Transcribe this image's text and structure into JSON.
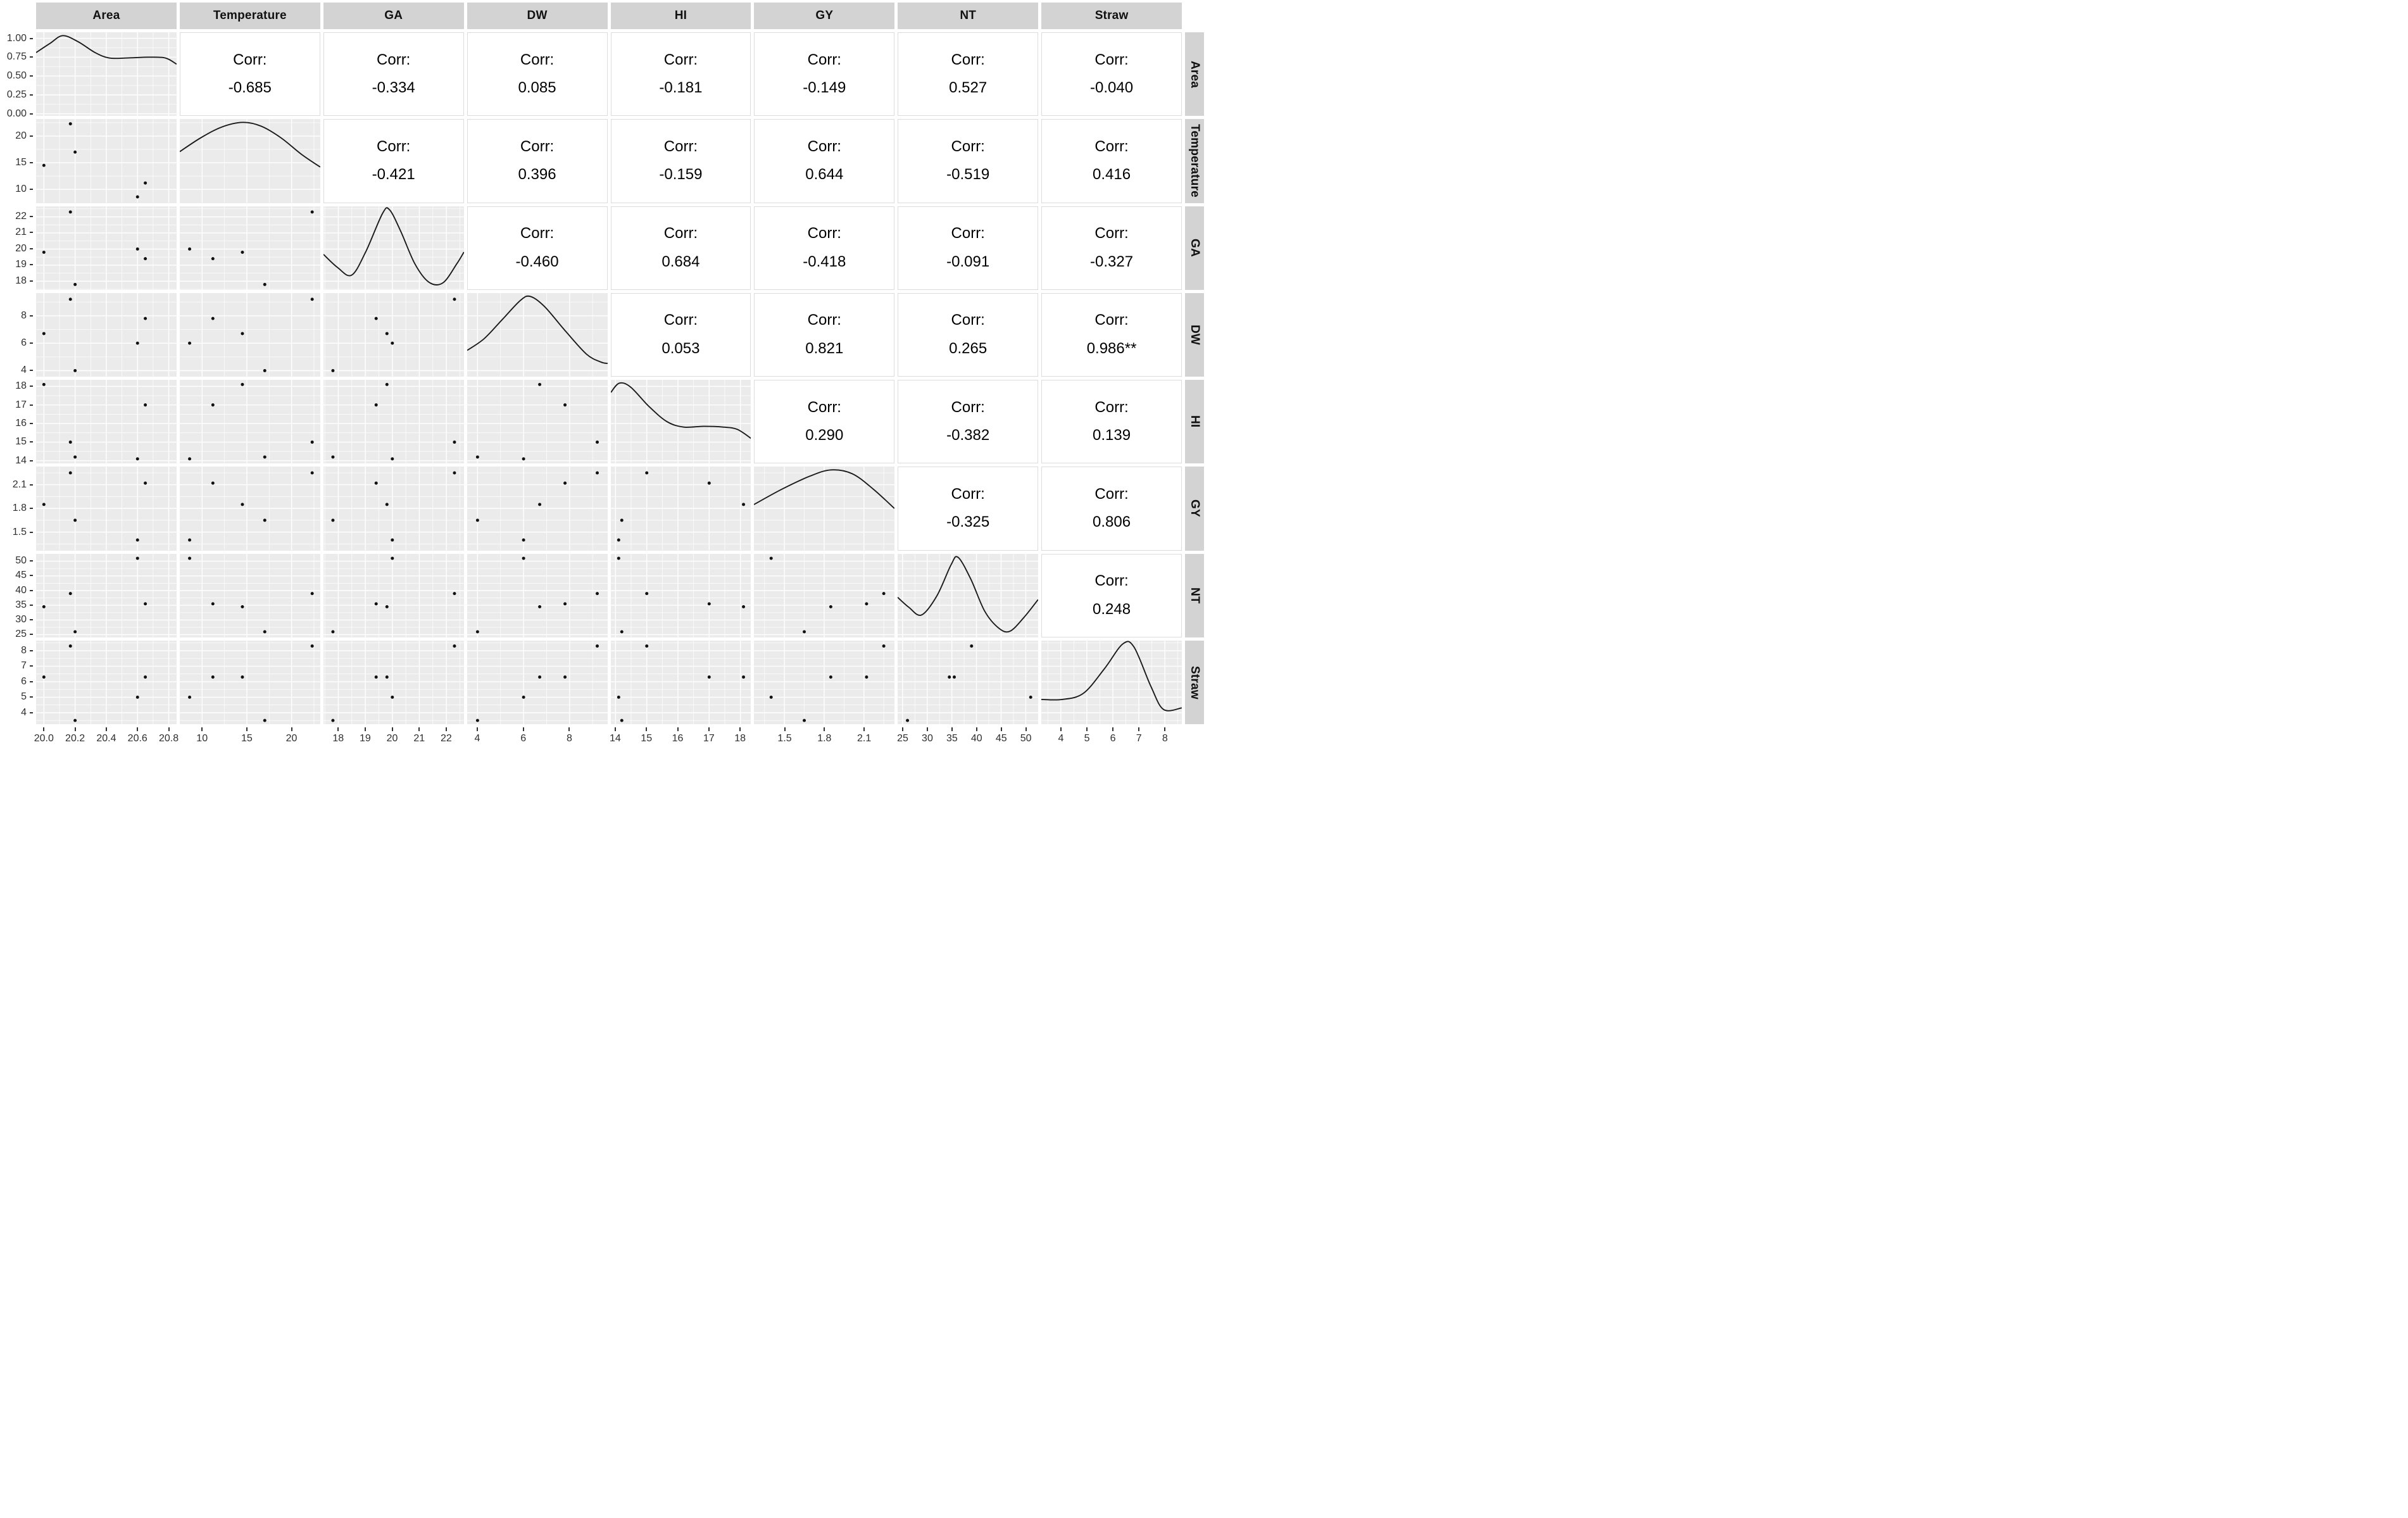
{
  "chart_data": {
    "type": "scatter",
    "subtype": "scatterplot-matrix",
    "title": "",
    "variables": [
      "Area",
      "Temperature",
      "GA",
      "DW",
      "HI",
      "GY",
      "NT",
      "Straw"
    ],
    "legend_position": "none",
    "grid": true,
    "axes": {
      "Area": {
        "range": [
          19.95,
          20.85
        ],
        "ticks": [
          20.0,
          20.2,
          20.4,
          20.6,
          20.8
        ],
        "tick_labels": [
          "20.0",
          "20.2",
          "20.4",
          "20.6",
          "20.8"
        ]
      },
      "Temperature": {
        "range": [
          7.5,
          23.2
        ],
        "ticks": [
          10,
          15,
          20
        ],
        "tick_labels": [
          "10",
          "15",
          "20"
        ]
      },
      "GA": {
        "range": [
          17.45,
          22.65
        ],
        "ticks": [
          18,
          19,
          20,
          21,
          22
        ],
        "tick_labels": [
          "18",
          "19",
          "20",
          "21",
          "22"
        ]
      },
      "DW": {
        "range": [
          3.55,
          9.65
        ],
        "ticks": [
          4,
          6,
          8
        ],
        "tick_labels": [
          "4",
          "6",
          "8"
        ]
      },
      "HI": {
        "range": [
          13.85,
          18.35
        ],
        "ticks": [
          14,
          15,
          16,
          17,
          18
        ],
        "tick_labels": [
          "14",
          "15",
          "16",
          "17",
          "18"
        ]
      },
      "GY": {
        "range": [
          1.27,
          2.33
        ],
        "ticks": [
          1.5,
          1.8,
          2.1
        ],
        "tick_labels": [
          "1.5",
          "1.8",
          "2.1"
        ]
      },
      "NT": {
        "range": [
          24,
          52.5
        ],
        "ticks": [
          25,
          30,
          35,
          40,
          45,
          50
        ],
        "tick_labels": [
          "25",
          "30",
          "35",
          "40",
          "45",
          "50"
        ]
      },
      "Straw": {
        "range": [
          3.25,
          8.65
        ],
        "ticks": [
          4,
          5,
          6,
          7,
          8
        ],
        "tick_labels": [
          "4",
          "5",
          "6",
          "7",
          "8"
        ]
      }
    },
    "density_axis": {
      "range": [
        -0.03,
        1.08
      ],
      "ticks": [
        1.0,
        0.75,
        0.5,
        0.25,
        0.0
      ],
      "tick_labels": [
        "1.00",
        "0.75",
        "0.50",
        "0.25",
        "0.00"
      ]
    },
    "corr_label": "Corr:",
    "correlations": {
      "Area|Temperature": "-0.685",
      "Area|GA": "-0.334",
      "Area|DW": "0.085",
      "Area|HI": "-0.181",
      "Area|GY": "-0.149",
      "Area|NT": "0.527",
      "Area|Straw": "-0.040",
      "Temperature|GA": "-0.421",
      "Temperature|DW": "0.396",
      "Temperature|HI": "-0.159",
      "Temperature|GY": "0.644",
      "Temperature|NT": "-0.519",
      "Temperature|Straw": "0.416",
      "GA|DW": "-0.460",
      "GA|HI": "0.684",
      "GA|GY": "-0.418",
      "GA|NT": "-0.091",
      "GA|Straw": "-0.327",
      "DW|HI": "0.053",
      "DW|GY": "0.821",
      "DW|NT": "0.265",
      "DW|Straw": "0.986**",
      "HI|GY": "0.290",
      "HI|NT": "-0.382",
      "HI|Straw": "0.139",
      "GY|NT": "-0.325",
      "GY|Straw": "0.806",
      "NT|Straw": "0.248"
    },
    "observations": [
      {
        "Area": 20.0,
        "Temperature": 14.5,
        "GA": 19.8,
        "DW": 6.7,
        "HI": 18.1,
        "GY": 1.85,
        "NT": 34.5,
        "Straw": 6.3
      },
      {
        "Area": 20.17,
        "Temperature": 22.3,
        "GA": 22.3,
        "DW": 9.2,
        "HI": 15.0,
        "GY": 2.25,
        "NT": 39.0,
        "Straw": 8.3
      },
      {
        "Area": 20.2,
        "Temperature": 17.0,
        "GA": 17.8,
        "DW": 4.0,
        "HI": 14.2,
        "GY": 1.65,
        "NT": 26.0,
        "Straw": 3.5
      },
      {
        "Area": 20.6,
        "Temperature": 8.6,
        "GA": 20.0,
        "DW": 6.0,
        "HI": 14.1,
        "GY": 1.4,
        "NT": 51.0,
        "Straw": 5.0
      },
      {
        "Area": 20.65,
        "Temperature": 11.2,
        "GA": 19.4,
        "DW": 7.8,
        "HI": 17.0,
        "GY": 2.12,
        "NT": 35.5,
        "Straw": 6.3
      }
    ],
    "densities": {
      "Area": [
        [
          0,
          0.78
        ],
        [
          0.1,
          0.9
        ],
        [
          0.19,
          1.0
        ],
        [
          0.3,
          0.92
        ],
        [
          0.42,
          0.78
        ],
        [
          0.52,
          0.71
        ],
        [
          0.65,
          0.71
        ],
        [
          0.8,
          0.72
        ],
        [
          0.92,
          0.71
        ],
        [
          1,
          0.63
        ]
      ],
      "Temperature": [
        [
          0,
          0.62
        ],
        [
          0.15,
          0.8
        ],
        [
          0.3,
          0.94
        ],
        [
          0.45,
          1.0
        ],
        [
          0.58,
          0.95
        ],
        [
          0.72,
          0.8
        ],
        [
          0.87,
          0.58
        ],
        [
          1,
          0.42
        ]
      ],
      "GA": [
        [
          0,
          0.42
        ],
        [
          0.1,
          0.25
        ],
        [
          0.2,
          0.15
        ],
        [
          0.3,
          0.45
        ],
        [
          0.42,
          0.95
        ],
        [
          0.47,
          1.0
        ],
        [
          0.55,
          0.72
        ],
        [
          0.65,
          0.3
        ],
        [
          0.75,
          0.06
        ],
        [
          0.85,
          0.05
        ],
        [
          0.95,
          0.3
        ],
        [
          1,
          0.45
        ]
      ],
      "DW": [
        [
          0,
          0.3
        ],
        [
          0.12,
          0.45
        ],
        [
          0.25,
          0.7
        ],
        [
          0.38,
          0.95
        ],
        [
          0.45,
          1.0
        ],
        [
          0.55,
          0.87
        ],
        [
          0.7,
          0.55
        ],
        [
          0.85,
          0.25
        ],
        [
          0.95,
          0.15
        ],
        [
          1,
          0.13
        ]
      ],
      "HI": [
        [
          0,
          0.88
        ],
        [
          0.06,
          1.0
        ],
        [
          0.14,
          0.95
        ],
        [
          0.27,
          0.7
        ],
        [
          0.4,
          0.5
        ],
        [
          0.52,
          0.43
        ],
        [
          0.66,
          0.44
        ],
        [
          0.8,
          0.43
        ],
        [
          0.9,
          0.4
        ],
        [
          1,
          0.28
        ]
      ],
      "GY": [
        [
          0,
          0.55
        ],
        [
          0.2,
          0.75
        ],
        [
          0.4,
          0.92
        ],
        [
          0.55,
          1.0
        ],
        [
          0.7,
          0.95
        ],
        [
          0.85,
          0.75
        ],
        [
          1,
          0.5
        ]
      ],
      "NT": [
        [
          0,
          0.48
        ],
        [
          0.08,
          0.35
        ],
        [
          0.17,
          0.25
        ],
        [
          0.28,
          0.5
        ],
        [
          0.38,
          0.9
        ],
        [
          0.43,
          1.0
        ],
        [
          0.52,
          0.72
        ],
        [
          0.62,
          0.3
        ],
        [
          0.72,
          0.08
        ],
        [
          0.8,
          0.04
        ],
        [
          0.9,
          0.22
        ],
        [
          1,
          0.45
        ]
      ],
      "Straw": [
        [
          0,
          0.28
        ],
        [
          0.15,
          0.28
        ],
        [
          0.3,
          0.36
        ],
        [
          0.45,
          0.68
        ],
        [
          0.58,
          1.0
        ],
        [
          0.66,
          0.96
        ],
        [
          0.78,
          0.45
        ],
        [
          0.87,
          0.15
        ],
        [
          1,
          0.17
        ]
      ]
    },
    "style": {
      "panel_bg": "#ebebeb",
      "grid_color": "#ffffff",
      "point_color": "#111111",
      "line_color": "#1a1a1a",
      "strip_bg": "#d3d3d3",
      "strip_text": "#111111",
      "corr_bg": "#ffffff",
      "corr_border": "#dcdcdc",
      "axis_text": "#2e2e2e",
      "tick_mark": "#333333"
    }
  },
  "strips": {
    "top": [
      "Area",
      "Temperature",
      "GA",
      "DW",
      "HI",
      "GY",
      "NT",
      "Straw"
    ],
    "right": [
      "Area",
      "Temperature",
      "GA",
      "DW",
      "HI",
      "GY",
      "NT",
      "Straw"
    ]
  }
}
